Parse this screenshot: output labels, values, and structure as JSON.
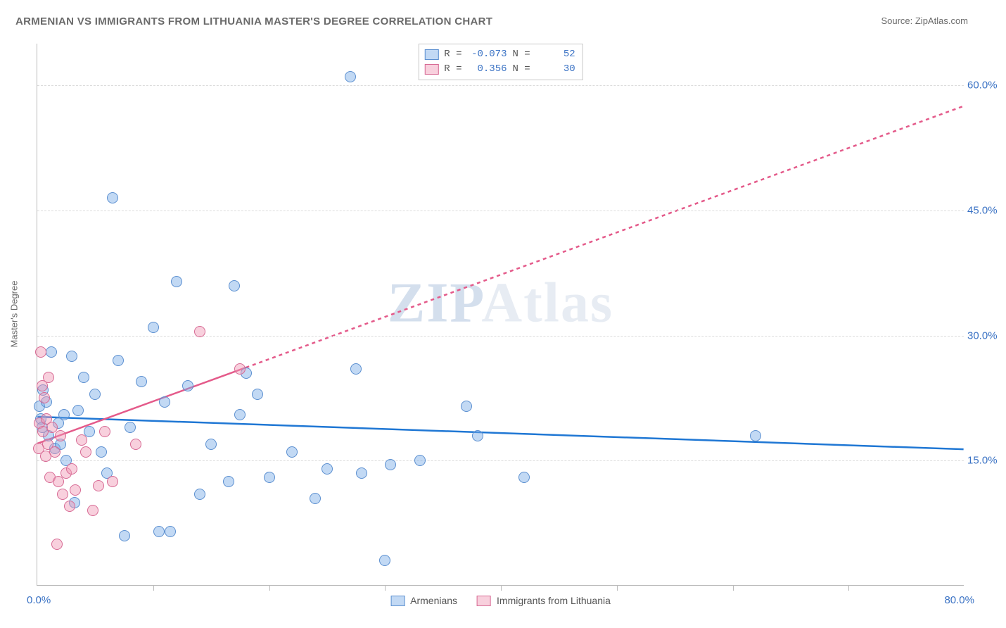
{
  "title": "ARMENIAN VS IMMIGRANTS FROM LITHUANIA MASTER'S DEGREE CORRELATION CHART",
  "source_label": "Source: ZipAtlas.com",
  "watermark": {
    "pre": "ZIP",
    "post": "Atlas"
  },
  "y_axis_label": "Master's Degree",
  "chart": {
    "type": "scatter",
    "xlim": [
      0,
      80
    ],
    "ylim": [
      0,
      65
    ],
    "x_min_label": "0.0%",
    "x_max_label": "80.0%",
    "y_ticks": [
      {
        "value": 15,
        "label": "15.0%"
      },
      {
        "value": 30,
        "label": "30.0%"
      },
      {
        "value": 45,
        "label": "45.0%"
      },
      {
        "value": 60,
        "label": "60.0%"
      }
    ],
    "x_tick_values": [
      10,
      20,
      30,
      40,
      50,
      60,
      70
    ],
    "grid_color": "#dcdcdc",
    "axis_color": "#bababa",
    "background_color": "#ffffff",
    "point_radius": 8,
    "point_border_width": 1.5
  },
  "series": [
    {
      "id": "armenians",
      "label": "Armenians",
      "R": "-0.073",
      "N": "52",
      "fill_color": "rgba(120,170,230,0.45)",
      "border_color": "#5b8fd0",
      "trend": {
        "color": "#1f77d4",
        "width": 2.5,
        "dash": "none",
        "x1": 0,
        "y1": 20.2,
        "x2": 80,
        "y2": 16.3,
        "extrapolate_from_x": 0
      },
      "points": [
        [
          0.2,
          21.5
        ],
        [
          0.3,
          20.0
        ],
        [
          0.4,
          19.0
        ],
        [
          0.5,
          23.5
        ],
        [
          0.8,
          22.0
        ],
        [
          1.0,
          18.0
        ],
        [
          1.2,
          28.0
        ],
        [
          1.5,
          16.5
        ],
        [
          1.8,
          19.5
        ],
        [
          2.0,
          17.0
        ],
        [
          2.3,
          20.5
        ],
        [
          2.5,
          15.0
        ],
        [
          3.0,
          27.5
        ],
        [
          3.2,
          10.0
        ],
        [
          3.5,
          21.0
        ],
        [
          4.0,
          25.0
        ],
        [
          4.5,
          18.5
        ],
        [
          5.0,
          23.0
        ],
        [
          5.5,
          16.0
        ],
        [
          6.0,
          13.5
        ],
        [
          6.5,
          46.5
        ],
        [
          7.0,
          27.0
        ],
        [
          7.5,
          6.0
        ],
        [
          8.0,
          19.0
        ],
        [
          9.0,
          24.5
        ],
        [
          10.0,
          31.0
        ],
        [
          10.5,
          6.5
        ],
        [
          11.0,
          22.0
        ],
        [
          11.5,
          6.5
        ],
        [
          12.0,
          36.5
        ],
        [
          13.0,
          24.0
        ],
        [
          14.0,
          11.0
        ],
        [
          15.0,
          17.0
        ],
        [
          16.5,
          12.5
        ],
        [
          17.0,
          36.0
        ],
        [
          17.5,
          20.5
        ],
        [
          18.0,
          25.5
        ],
        [
          19.0,
          23.0
        ],
        [
          20.0,
          13.0
        ],
        [
          22.0,
          16.0
        ],
        [
          24.0,
          10.5
        ],
        [
          25.0,
          14.0
        ],
        [
          27.0,
          61.0
        ],
        [
          27.5,
          26.0
        ],
        [
          28.0,
          13.5
        ],
        [
          30.0,
          3.0
        ],
        [
          30.5,
          14.5
        ],
        [
          33.0,
          15.0
        ],
        [
          37.0,
          21.5
        ],
        [
          38.0,
          18.0
        ],
        [
          42.0,
          13.0
        ],
        [
          62.0,
          18.0
        ]
      ]
    },
    {
      "id": "lithuania",
      "label": "Immigrants from Lithuania",
      "R": "0.356",
      "N": "30",
      "fill_color": "rgba(240,150,180,0.45)",
      "border_color": "#d76a94",
      "trend": {
        "color": "#e45a8a",
        "width": 2.5,
        "dash": "5,5",
        "x1": 0,
        "y1": 17.0,
        "x2": 80,
        "y2": 57.5,
        "extrapolate_from_x": 18
      },
      "points": [
        [
          0.1,
          16.5
        ],
        [
          0.2,
          19.5
        ],
        [
          0.3,
          28.0
        ],
        [
          0.4,
          24.0
        ],
        [
          0.5,
          18.5
        ],
        [
          0.6,
          22.5
        ],
        [
          0.7,
          15.5
        ],
        [
          0.8,
          20.0
        ],
        [
          0.9,
          17.0
        ],
        [
          1.0,
          25.0
        ],
        [
          1.1,
          13.0
        ],
        [
          1.3,
          19.0
        ],
        [
          1.5,
          16.0
        ],
        [
          1.7,
          5.0
        ],
        [
          1.8,
          12.5
        ],
        [
          2.0,
          18.0
        ],
        [
          2.2,
          11.0
        ],
        [
          2.5,
          13.5
        ],
        [
          2.8,
          9.5
        ],
        [
          3.0,
          14.0
        ],
        [
          3.3,
          11.5
        ],
        [
          3.8,
          17.5
        ],
        [
          4.2,
          16.0
        ],
        [
          4.8,
          9.0
        ],
        [
          5.3,
          12.0
        ],
        [
          5.8,
          18.5
        ],
        [
          6.5,
          12.5
        ],
        [
          8.5,
          17.0
        ],
        [
          14.0,
          30.5
        ],
        [
          17.5,
          26.0
        ]
      ]
    }
  ],
  "legend_top": {
    "R_label": "R =",
    "N_label": "N ="
  }
}
